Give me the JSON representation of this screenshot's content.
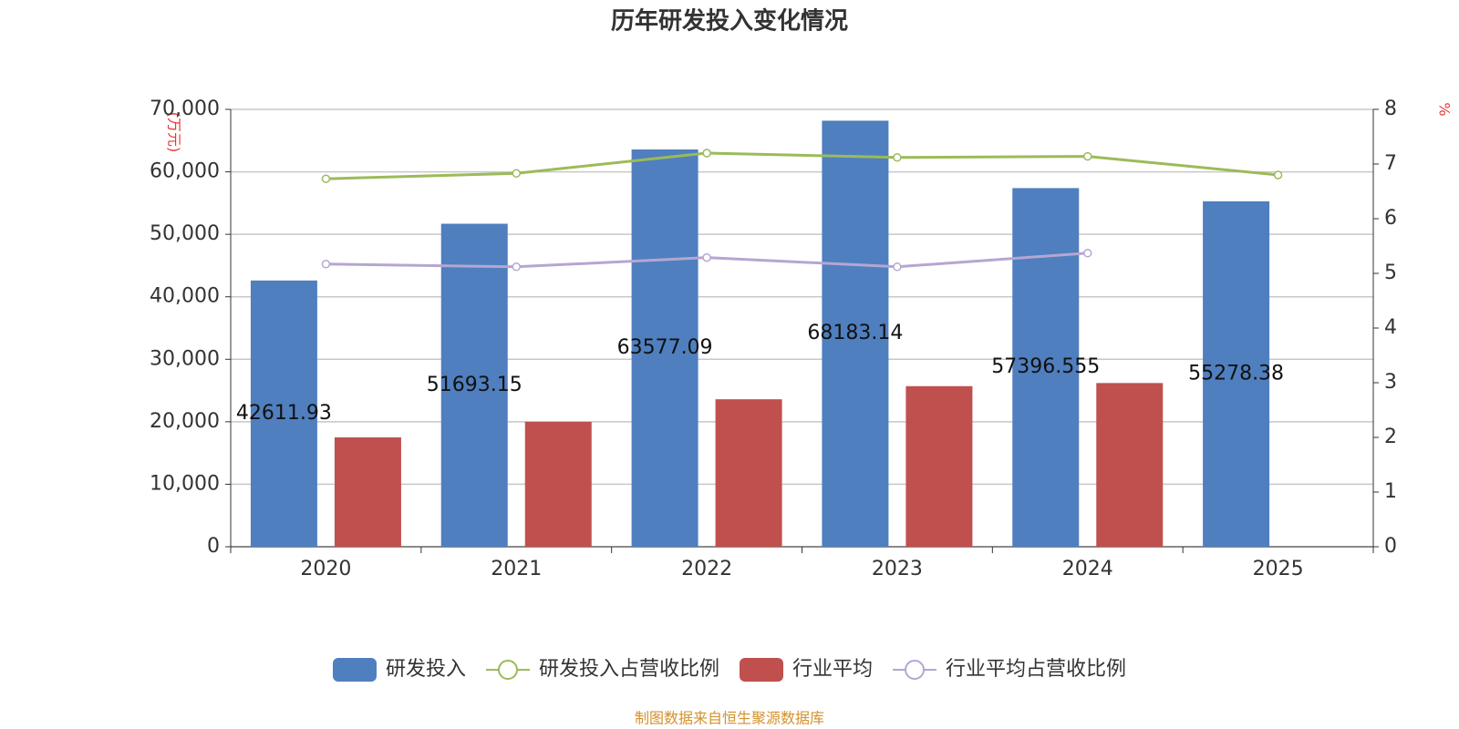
{
  "chart_data": {
    "type": "bar-line",
    "title": "历年研发投入变化情况",
    "y_label": "(万元)",
    "y2_label": "%",
    "source": "制图数据来自恒生聚源数据库",
    "categories": [
      "2020",
      "2021",
      "2022",
      "2023",
      "2024",
      "2025"
    ],
    "series": [
      {
        "name": "研发投入",
        "type": "bar",
        "color": "#4f7fbe",
        "values": [
          42611.93,
          51693.15,
          63577.09,
          68183.14,
          57396.555,
          55278.38
        ]
      },
      {
        "name": "研发投入占营收比例",
        "type": "line",
        "axis": "y2",
        "color": "#9bbb59",
        "values": [
          6.73,
          6.83,
          7.2,
          7.12,
          7.14,
          6.8
        ]
      },
      {
        "name": "行业平均",
        "type": "bar",
        "color": "#c0504d",
        "values": [
          17500,
          20000,
          23600,
          25700,
          26200,
          null
        ]
      },
      {
        "name": "行业平均占营收比例",
        "type": "line",
        "axis": "y2",
        "color": "#b5a6d2",
        "values": [
          5.17,
          5.12,
          5.29,
          5.12,
          5.37,
          null
        ]
      }
    ],
    "ylim": [
      0,
      70000
    ],
    "yticks": [
      {
        "value": 0,
        "label": "0"
      },
      {
        "value": 10000,
        "label": "10,000"
      },
      {
        "value": 20000,
        "label": "20,000"
      },
      {
        "value": 30000,
        "label": "30,000"
      },
      {
        "value": 40000,
        "label": "40,000"
      },
      {
        "value": 50000,
        "label": "50,000"
      },
      {
        "value": 60000,
        "label": "60,000"
      },
      {
        "value": 70000,
        "label": "70,000"
      }
    ],
    "y2lim": [
      0,
      8
    ],
    "y2ticks": [
      0,
      1,
      2,
      3,
      4,
      5,
      6,
      7,
      8
    ],
    "grid": true
  }
}
